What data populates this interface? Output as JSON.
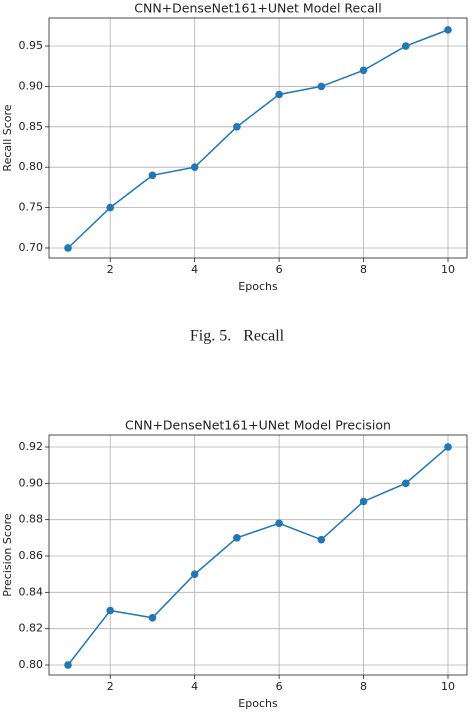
{
  "chart_data": [
    {
      "type": "line",
      "title": "CNN+DenseNet161+UNet Model Recall",
      "x_label": "Epochs",
      "y_label": "Recall Score",
      "x": [
        1,
        2,
        3,
        4,
        5,
        6,
        7,
        8,
        9,
        10
      ],
      "series": [
        {
          "color": "#1f77b4",
          "values": [
            0.7,
            0.75,
            0.79,
            0.8,
            0.85,
            0.89,
            0.9,
            0.92,
            0.95,
            0.97
          ]
        }
      ],
      "xlim": [
        0.55,
        10.45
      ],
      "xticks": [
        2,
        4,
        6,
        8,
        10
      ],
      "ylim": [
        0.6876,
        0.9847
      ],
      "yticks": [
        {
          "value": 0.7,
          "label": "0.70"
        },
        0.75,
        {
          "value": 0.8,
          "label": "0.80"
        },
        0.85,
        {
          "value": 0.9,
          "label": "0.90"
        },
        0.95
      ],
      "grid": true,
      "caption": "Fig. 5.   Recall"
    },
    {
      "type": "line",
      "title": "CNN+DenseNet161+UNet Model Precision",
      "x_label": "Epochs",
      "y_label": "Precision Score",
      "x": [
        1,
        2,
        3,
        4,
        5,
        6,
        7,
        8,
        9,
        10
      ],
      "series": [
        {
          "color": "#1f77b4",
          "values": [
            0.8,
            0.83,
            0.826,
            0.85,
            0.87,
            0.878,
            0.869,
            0.89,
            0.9,
            0.92
          ]
        }
      ],
      "xlim": [
        0.55,
        10.45
      ],
      "xticks": [
        2,
        4,
        6,
        8,
        10
      ],
      "ylim": [
        0.7945,
        0.9266
      ],
      "yticks": [
        {
          "value": 0.8,
          "label": "0.80"
        },
        0.82,
        0.84,
        0.86,
        0.88,
        {
          "value": 0.9,
          "label": "0.90"
        },
        0.92
      ],
      "grid": true
    }
  ]
}
